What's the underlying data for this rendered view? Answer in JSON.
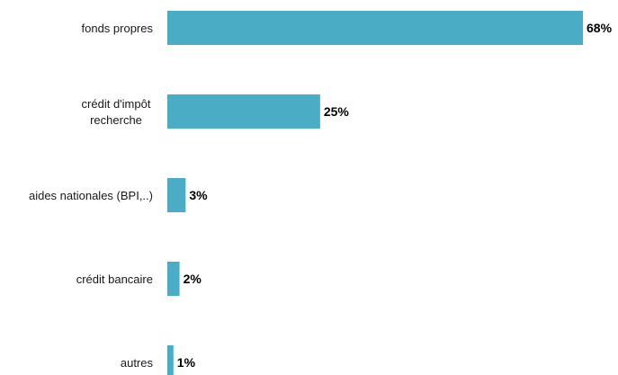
{
  "chart_data": {
    "type": "bar",
    "orientation": "horizontal",
    "categories": [
      [
        "fonds propres"
      ],
      [
        "crédit d'impôt",
        "recherche"
      ],
      [
        "aides nationales (BPI,..)"
      ],
      [
        "crédit bancaire"
      ],
      [
        "autres"
      ]
    ],
    "values": [
      68,
      25,
      3,
      2,
      1
    ],
    "value_labels": [
      "68%",
      "25%",
      "3%",
      "2%",
      "1%"
    ],
    "unit": "%",
    "title": "",
    "xlabel": "",
    "ylabel": "",
    "xlim": [
      0,
      68
    ],
    "grid": false,
    "legend": "none",
    "bar_color": "#4bacc6"
  }
}
